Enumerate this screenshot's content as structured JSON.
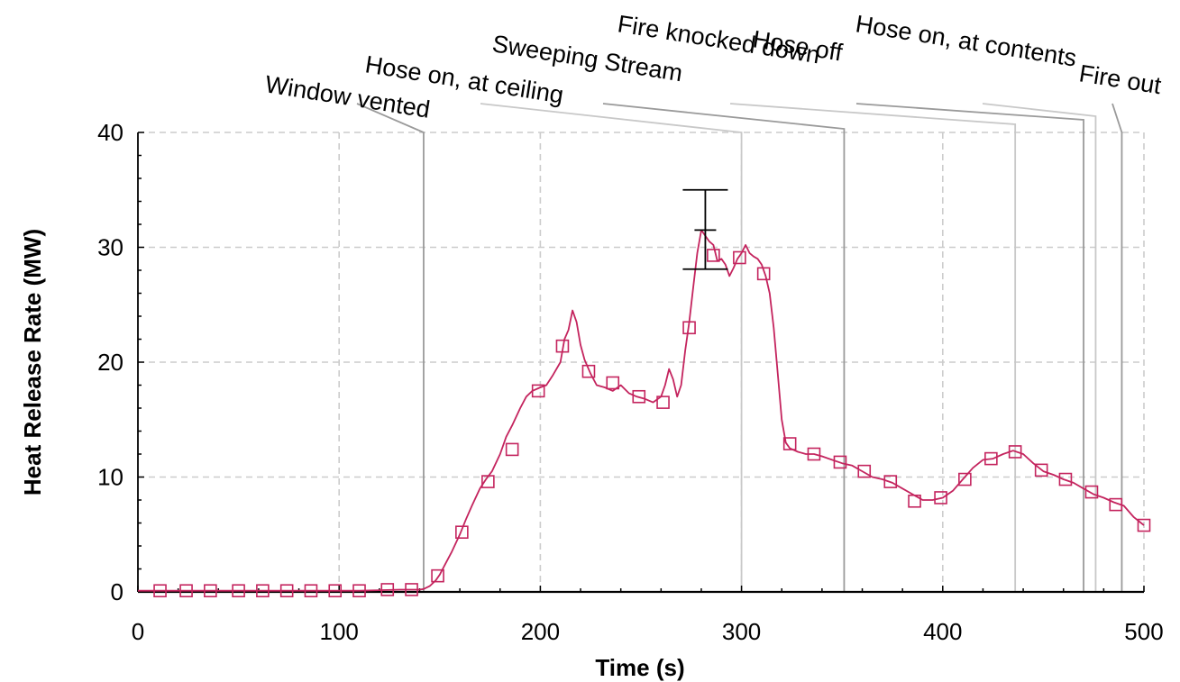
{
  "chart_data": {
    "type": "line",
    "title": "",
    "xlabel": "Time (s)",
    "ylabel": "Heat Release Rate (MW)",
    "xlim": [
      0,
      500
    ],
    "ylim": [
      0,
      40
    ],
    "x_ticks": [
      "0",
      "100",
      "200",
      "300",
      "400",
      "500"
    ],
    "y_ticks": [
      "0",
      "10",
      "20",
      "30",
      "40"
    ],
    "grid": true,
    "colors": {
      "series": "#c4245e",
      "event_line_dark": "#9a9a9a",
      "event_line_light": "#c8c8c8",
      "grid": "#cccccc",
      "error_bar": "#000000"
    },
    "series": [
      {
        "x": [
          0,
          10,
          20,
          30,
          40,
          50,
          60,
          70,
          80,
          90,
          100,
          110,
          120,
          130,
          140,
          142,
          145,
          148,
          150,
          153,
          156,
          160,
          163,
          166,
          170,
          173,
          176,
          180,
          183,
          186,
          190,
          193,
          196,
          200,
          203,
          206,
          210,
          212,
          214,
          216,
          218,
          220,
          222,
          225,
          228,
          232,
          236,
          240,
          244,
          248,
          252,
          256,
          260,
          262,
          264,
          266,
          268,
          270,
          272,
          274,
          276,
          278,
          280,
          282,
          284,
          286,
          288,
          290,
          292,
          294,
          296,
          298,
          300,
          302,
          304,
          306,
          308,
          310,
          312,
          314,
          316,
          318,
          320,
          322,
          324,
          328,
          332,
          336,
          340,
          345,
          350,
          355,
          360,
          365,
          370,
          375,
          380,
          385,
          390,
          395,
          400,
          405,
          410,
          415,
          420,
          425,
          430,
          435,
          440,
          445,
          450,
          455,
          460,
          465,
          470,
          475,
          480,
          485,
          490,
          495,
          500
        ],
        "y": [
          0.1,
          0.1,
          0.1,
          0.1,
          0.1,
          0.1,
          0.1,
          0.1,
          0.1,
          0.1,
          0.1,
          0.1,
          0.15,
          0.2,
          0.2,
          0.25,
          0.5,
          1.0,
          1.5,
          2.5,
          3.5,
          5.0,
          6.3,
          7.5,
          9.0,
          9.8,
          10.5,
          12.0,
          13.5,
          14.5,
          16.0,
          17.0,
          17.5,
          17.8,
          18.0,
          18.8,
          20.0,
          22.0,
          22.8,
          24.5,
          23.5,
          21.5,
          20.2,
          19.0,
          18.0,
          17.8,
          17.5,
          18.0,
          17.3,
          17.0,
          16.8,
          16.5,
          17.0,
          18.0,
          19.4,
          18.5,
          17.0,
          18.0,
          21.0,
          23.5,
          26.5,
          29.5,
          31.5,
          31.0,
          30.5,
          30.2,
          28.8,
          29.0,
          28.5,
          27.5,
          28.2,
          29.0,
          29.5,
          30.2,
          29.5,
          29.2,
          29.0,
          28.5,
          27.5,
          26.0,
          23.0,
          19.0,
          15.0,
          13.0,
          12.5,
          12.2,
          12.0,
          12.0,
          11.8,
          11.5,
          11.2,
          11.0,
          10.5,
          10.0,
          9.8,
          9.5,
          9.0,
          8.5,
          8.0,
          8.0,
          8.2,
          8.8,
          9.8,
          10.8,
          11.5,
          11.6,
          12.0,
          12.3,
          12.0,
          11.2,
          10.5,
          10.2,
          9.8,
          9.5,
          9.0,
          8.5,
          8.2,
          7.8,
          7.5,
          6.5,
          5.8
        ]
      }
    ],
    "markers": {
      "x": [
        11,
        24,
        36,
        50,
        62,
        74,
        86,
        98,
        110,
        124,
        136,
        149,
        161,
        174,
        186,
        199,
        211,
        224,
        236,
        249,
        261,
        274,
        286,
        299,
        311,
        324,
        336,
        349,
        361,
        374,
        386,
        399,
        411,
        424,
        436,
        449,
        461,
        474,
        486,
        500
      ],
      "y": [
        0.1,
        0.1,
        0.1,
        0.1,
        0.1,
        0.1,
        0.1,
        0.1,
        0.1,
        0.2,
        0.2,
        1.4,
        5.2,
        9.6,
        12.4,
        17.5,
        21.4,
        19.2,
        18.2,
        17.0,
        16.5,
        23.0,
        29.3,
        29.1,
        27.7,
        12.9,
        12.0,
        11.3,
        10.5,
        9.6,
        7.9,
        8.2,
        9.8,
        11.6,
        12.2,
        10.6,
        9.8,
        8.7,
        7.6,
        5.8
      ]
    },
    "error_bar": {
      "x": 282,
      "low": 28.1,
      "mid": 31.5,
      "high": 35.0
    },
    "events": [
      {
        "label": "Window vented",
        "time": 142
      },
      {
        "label": "Hose on, at ceiling",
        "time": 300
      },
      {
        "label": "Sweeping Stream",
        "time": 351
      },
      {
        "label": "Fire knocked down",
        "time": 436
      },
      {
        "label": "Hose off",
        "time": 470
      },
      {
        "label": "Hose on, at contents",
        "time": 476
      },
      {
        "label": "Fire out",
        "time": 489
      }
    ]
  }
}
